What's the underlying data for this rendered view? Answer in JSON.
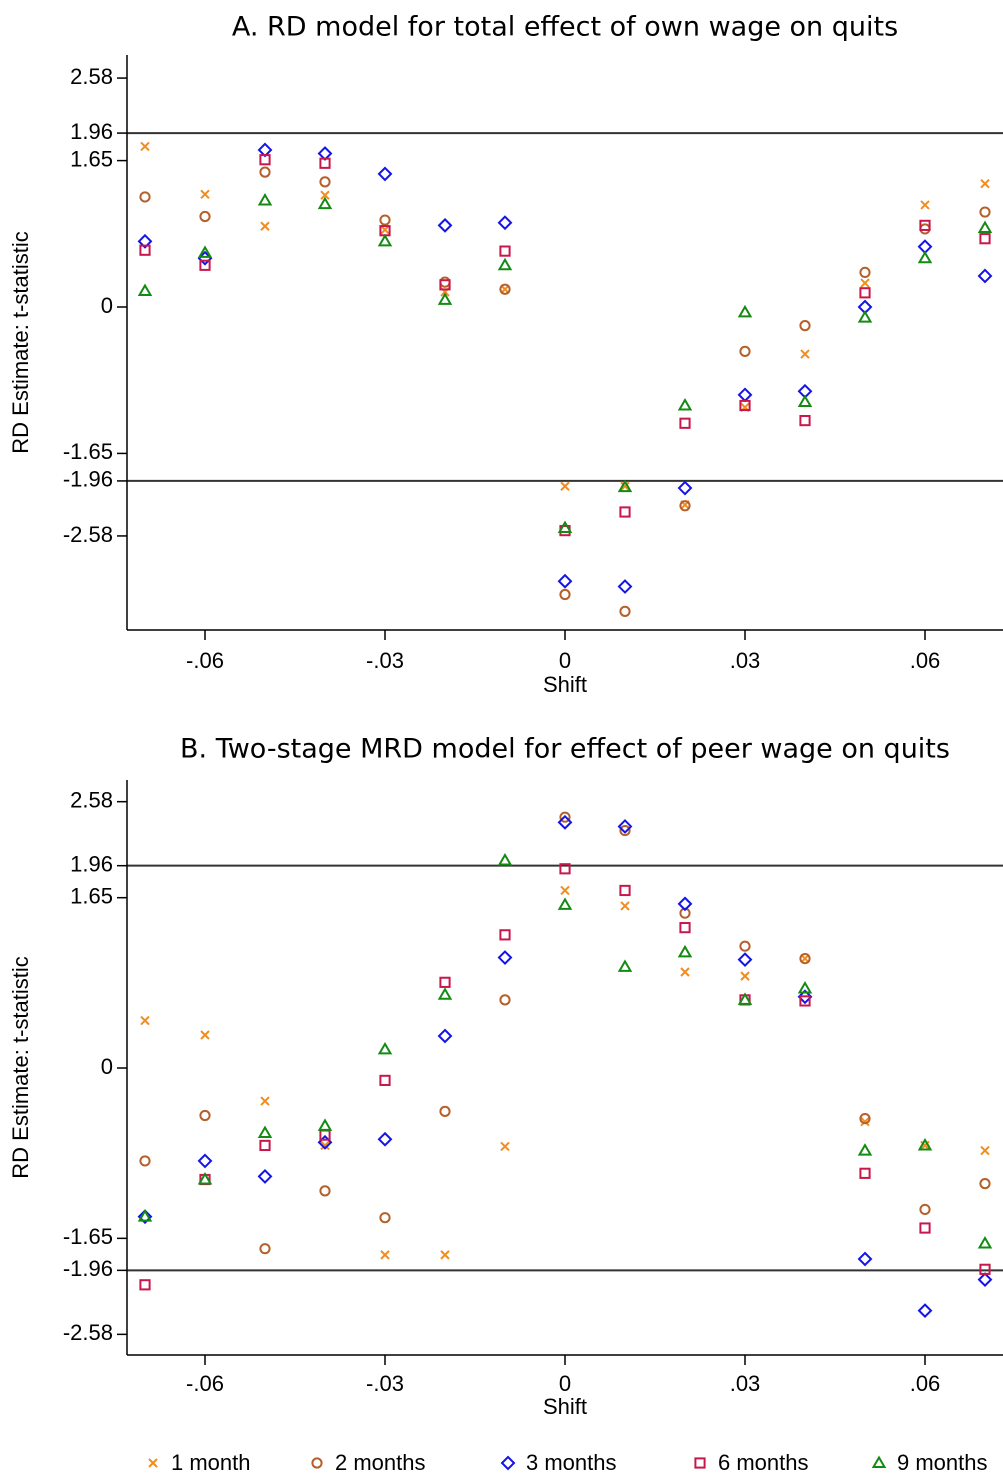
{
  "chart_data": [
    {
      "type": "scatter",
      "title": "A. RD model for total effect of own wage on quits",
      "x_label": "Shift",
      "y_label": "RD Estimate: t-statistic",
      "x": [
        -0.07,
        -0.06,
        -0.05,
        -0.04,
        -0.03,
        -0.02,
        -0.01,
        0,
        0.01,
        0.02,
        0.03,
        0.04,
        0.05,
        0.06,
        0.07
      ],
      "xlim": [
        -0.073,
        0.073
      ],
      "xticks": [
        {
          "value": -0.06,
          "label": "-.06"
        },
        {
          "value": -0.03,
          "label": "-.03"
        },
        0,
        {
          "value": 0.03,
          "label": ".03"
        },
        {
          "value": 0.06,
          "label": ".06"
        }
      ],
      "ylim": [
        -3.64,
        2.84
      ],
      "yticks": [
        2.58,
        1.96,
        1.65,
        0,
        -1.65,
        -1.96,
        -2.58
      ],
      "hlines": [
        1.96,
        -1.96
      ],
      "series": [
        {
          "name": "1 month",
          "color": "#f28c1e",
          "marker": "x",
          "values": [
            1.81,
            1.27,
            0.91,
            1.26,
            0.87,
            0.17,
            0.2,
            -2.02,
            -2.02,
            -2.23,
            -1.13,
            -0.53,
            0.27,
            1.15,
            1.39
          ]
        },
        {
          "name": "2 months",
          "color": "#b5602a",
          "marker": "circle",
          "values": [
            1.24,
            1.02,
            1.52,
            1.41,
            0.98,
            0.28,
            0.2,
            -3.24,
            -3.43,
            -2.24,
            -0.5,
            -0.21,
            0.39,
            0.88,
            1.07
          ]
        },
        {
          "name": "3 months",
          "color": "#1414e6",
          "marker": "diamond",
          "values": [
            0.74,
            0.55,
            1.77,
            1.73,
            1.5,
            0.92,
            0.95,
            -3.09,
            -3.15,
            -2.04,
            -0.99,
            -0.95,
            0.0,
            0.68,
            0.35
          ]
        },
        {
          "name": "6 months",
          "color": "#c8174d",
          "marker": "square",
          "values": [
            0.64,
            0.47,
            1.66,
            1.62,
            0.86,
            0.25,
            0.63,
            -2.52,
            -2.31,
            -1.31,
            -1.11,
            -1.28,
            0.16,
            0.92,
            0.77
          ]
        },
        {
          "name": "9 months",
          "color": "#138a13",
          "marker": "triangle",
          "values": [
            0.18,
            0.61,
            1.2,
            1.16,
            0.74,
            0.08,
            0.47,
            -2.49,
            -2.03,
            -1.11,
            -0.06,
            -1.07,
            -0.12,
            0.55,
            0.89
          ]
        }
      ]
    },
    {
      "type": "scatter",
      "title": "B. Two-stage MRD model for effect of peer wage on quits",
      "x_label": "Shift",
      "y_label": "RD Estimate: t-statistic",
      "x": [
        -0.07,
        -0.06,
        -0.05,
        -0.04,
        -0.03,
        -0.02,
        -0.01,
        0,
        0.01,
        0.02,
        0.03,
        0.04,
        0.05,
        0.06,
        0.07
      ],
      "xlim": [
        -0.073,
        0.073
      ],
      "xticks": [
        {
          "value": -0.06,
          "label": "-.06"
        },
        {
          "value": -0.03,
          "label": "-.03"
        },
        0,
        {
          "value": 0.03,
          "label": ".03"
        },
        {
          "value": 0.06,
          "label": ".06"
        }
      ],
      "ylim": [
        -2.78,
        2.79
      ],
      "yticks": [
        2.58,
        1.96,
        1.65,
        0,
        -1.65,
        -1.96,
        -2.58
      ],
      "hlines": [
        1.96,
        -1.96
      ],
      "legend": "bottom",
      "series": [
        {
          "color": "#f28c1e",
          "marker": "x",
          "values": [
            0.46,
            0.32,
            -0.32,
            -0.75,
            -1.81,
            -1.81,
            -0.76,
            1.72,
            1.57,
            0.93,
            0.89,
            1.06,
            -0.52,
            -0.75,
            -0.8
          ]
        },
        {
          "color": "#b5602a",
          "marker": "circle",
          "values": [
            -0.9,
            -0.46,
            -1.75,
            -1.19,
            -1.45,
            -0.42,
            0.66,
            2.43,
            2.3,
            1.5,
            1.18,
            1.06,
            -0.49,
            -1.37,
            -1.12
          ]
        },
        {
          "color": "#1414e6",
          "marker": "diamond",
          "values": [
            -1.44,
            -0.9,
            -1.05,
            -0.72,
            -0.69,
            0.31,
            1.07,
            2.38,
            2.34,
            1.59,
            1.05,
            0.69,
            -1.85,
            -2.35,
            -2.05
          ]
        },
        {
          "color": "#c8174d",
          "marker": "square",
          "values": [
            -2.1,
            -1.08,
            -0.75,
            -0.65,
            -0.12,
            0.83,
            1.29,
            1.93,
            1.72,
            1.36,
            0.66,
            0.65,
            -1.02,
            -1.55,
            -1.95
          ]
        },
        {
          "color": "#138a13",
          "marker": "triangle",
          "values": [
            -1.44,
            -1.08,
            -0.63,
            -0.56,
            0.18,
            0.71,
            2.01,
            1.58,
            0.98,
            1.12,
            0.66,
            0.77,
            -0.8,
            -0.75,
            -1.7
          ]
        }
      ]
    }
  ]
}
